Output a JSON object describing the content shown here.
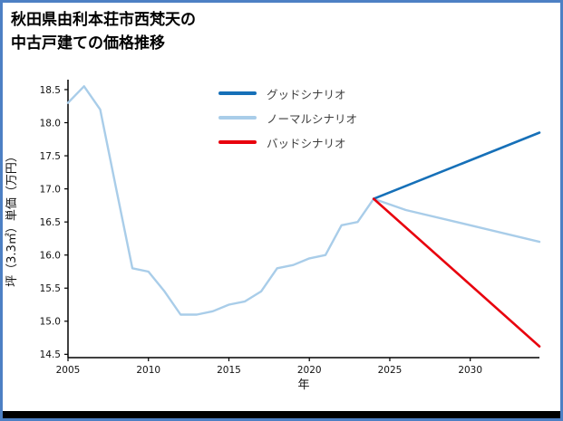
{
  "title": {
    "line1": "秋田県由利本荘市西梵天の",
    "line2": "中古戸建ての価格推移"
  },
  "legend": [
    {
      "label": "グッドシナリオ",
      "color": "#1670b8"
    },
    {
      "label": "ノーマルシナリオ",
      "color": "#a9cde9"
    },
    {
      "label": "バッドシナリオ",
      "color": "#e8000d"
    }
  ],
  "chart_data": {
    "type": "line",
    "title": "秋田県由利本荘市西梵天の中古戸建ての価格推移",
    "xlabel": "年",
    "ylabel": "坪（3.3㎡）単価（万円）",
    "xlim": [
      2005,
      2034.3
    ],
    "ylim": [
      14.45,
      18.65
    ],
    "xticks": [
      2005,
      2010,
      2015,
      2020,
      2025,
      2030
    ],
    "yticks": [
      14.5,
      15.0,
      15.5,
      16.0,
      16.5,
      17.0,
      17.5,
      18.0,
      18.5
    ],
    "grid": false,
    "legend_position": "upper-center-inside",
    "series": [
      {
        "name": "history",
        "color": "#a9cde9",
        "width": 2.4,
        "x": [
          2005,
          2006,
          2007,
          2008,
          2009,
          2010,
          2011,
          2012,
          2013,
          2014,
          2015,
          2016,
          2017,
          2018,
          2019,
          2020,
          2021,
          2022,
          2023,
          2024
        ],
        "y": [
          18.3,
          18.55,
          18.2,
          17.0,
          15.8,
          15.75,
          15.45,
          15.1,
          15.1,
          15.15,
          15.25,
          15.3,
          15.45,
          15.8,
          15.85,
          15.95,
          16.0,
          16.45,
          16.5,
          16.85
        ]
      },
      {
        "name": "normal",
        "color": "#a9cde9",
        "width": 2.4,
        "x": [
          2024,
          2026,
          2030,
          2034.3
        ],
        "y": [
          16.85,
          16.68,
          16.45,
          16.2
        ]
      },
      {
        "name": "good",
        "color": "#1670b8",
        "width": 2.6,
        "x": [
          2024,
          2034.3
        ],
        "y": [
          16.85,
          17.85
        ]
      },
      {
        "name": "bad",
        "color": "#e8000d",
        "width": 2.6,
        "x": [
          2024,
          2034.3
        ],
        "y": [
          16.85,
          14.62
        ]
      }
    ]
  }
}
